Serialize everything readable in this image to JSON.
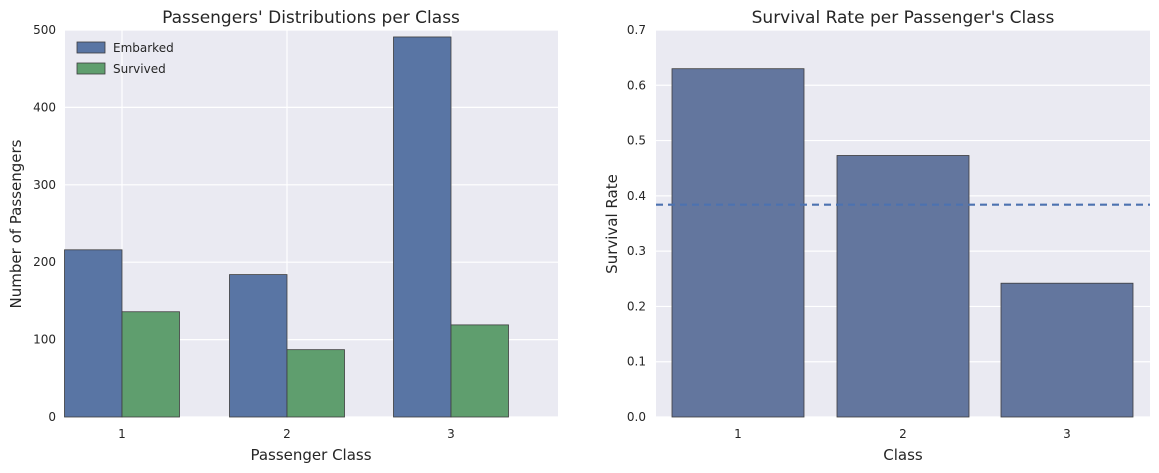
{
  "chart_data": [
    {
      "type": "bar",
      "title": "Passengers' Distributions per Class",
      "xlabel": "Passenger Class",
      "ylabel": "Number of Passengers",
      "categories": [
        "1",
        "2",
        "3"
      ],
      "ylim": [
        0,
        500
      ],
      "yticks": [
        "0",
        "100",
        "200",
        "300",
        "400",
        "500"
      ],
      "grid": true,
      "legend_position": "upper-left",
      "series": [
        {
          "name": "Embarked",
          "values": [
            216,
            184,
            491
          ],
          "color": "#5975a4"
        },
        {
          "name": "Survived",
          "values": [
            136,
            87,
            119
          ],
          "color": "#5f9e6e"
        }
      ]
    },
    {
      "type": "bar",
      "title": "Survival Rate per Passenger's Class",
      "xlabel": "Class",
      "ylabel": "Survival Rate",
      "categories": [
        "1",
        "2",
        "3"
      ],
      "ylim": [
        0,
        0.7
      ],
      "yticks": [
        "0.0",
        "0.1",
        "0.2",
        "0.3",
        "0.4",
        "0.5",
        "0.6",
        "0.7"
      ],
      "grid": true,
      "series": [
        {
          "values": [
            0.63,
            0.473,
            0.242
          ],
          "color": "#63769e"
        }
      ],
      "reference_line": {
        "value": 0.384,
        "style": "dashed",
        "color": "#4c72b0"
      }
    }
  ]
}
